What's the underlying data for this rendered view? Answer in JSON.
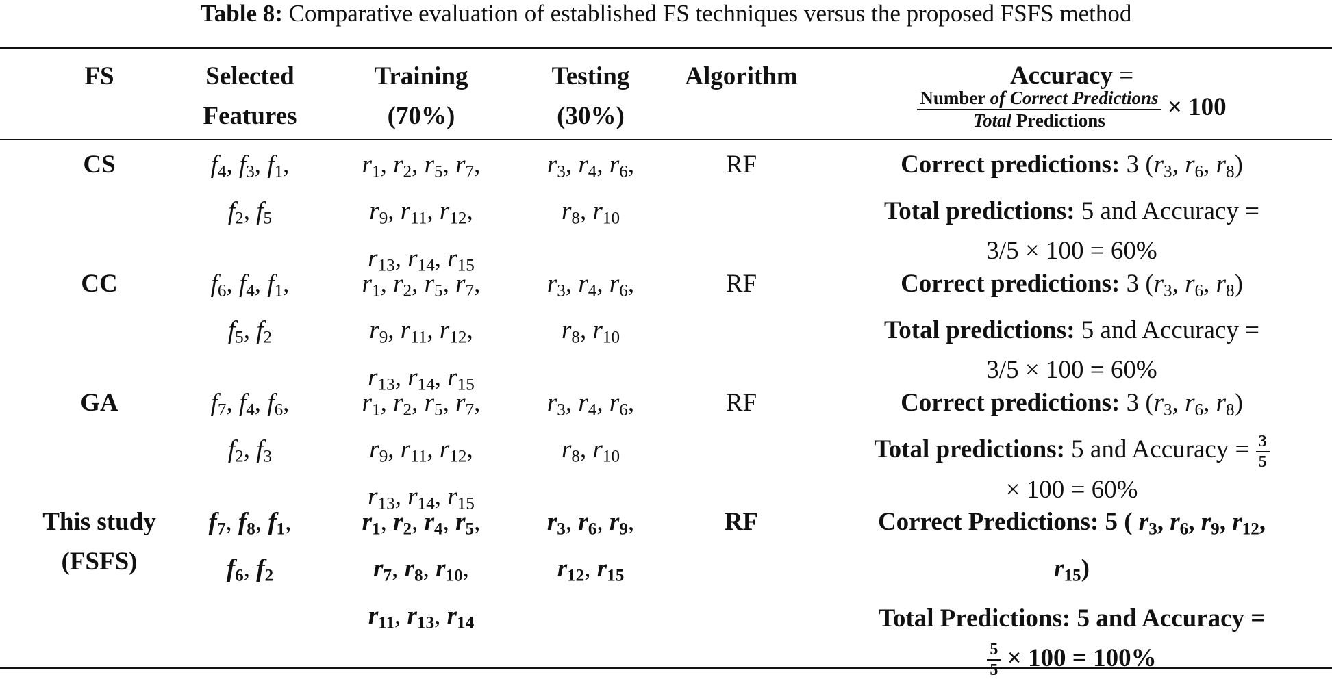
{
  "caption": {
    "label": "Table 8:",
    "text": " Comparative evaluation of established FS techniques versus the proposed FSFS method"
  },
  "header": {
    "fs": "FS",
    "selected_1": "Selected",
    "selected_2": "Features",
    "training_1": "Training",
    "training_2": "(70%)",
    "testing_1": "Testing",
    "testing_2": "(30%)",
    "algorithm": "Algorithm",
    "accuracy_label": "Accuracy",
    "accuracy_eq": " =",
    "frac_num_a": "Number",
    "frac_num_b": "of Correct Predictions",
    "frac_den_a": "Total",
    "frac_den_b": " Predictions",
    "times_100": "× 100"
  },
  "rows": [
    {
      "fs": "CS",
      "features_line1": [
        "4",
        "3",
        "1"
      ],
      "features_line2": [
        "2",
        "5"
      ],
      "training_line1": [
        "1",
        "2",
        "5",
        "7"
      ],
      "training_line2": [
        "9",
        "11",
        "12"
      ],
      "training_line3": [
        "13",
        "14",
        "15"
      ],
      "testing_line1": [
        "3",
        "4",
        "6"
      ],
      "testing_line2": [
        "8",
        "10"
      ],
      "algorithm": "RF",
      "acc_line1_label": "Correct predictions:",
      "acc_line1_value": " 3 (",
      "acc_line1_items": [
        "3",
        "6",
        "8"
      ],
      "acc_line2_label": "Total predictions:",
      "acc_line2_value": " 5 and Accuracy =",
      "acc_line3": "3/5 × 100 = 60%"
    },
    {
      "fs": "CC",
      "features_line1": [
        "6",
        "4",
        "1"
      ],
      "features_line2": [
        "5",
        "2"
      ],
      "training_line1": [
        "1",
        "2",
        "5",
        "7"
      ],
      "training_line2": [
        "9",
        "11",
        "12"
      ],
      "training_line3": [
        "13",
        "14",
        "15"
      ],
      "testing_line1": [
        "3",
        "4",
        "6"
      ],
      "testing_line2": [
        "8",
        "10"
      ],
      "algorithm": "RF",
      "acc_line1_label": "Correct predictions:",
      "acc_line1_value": " 3 (",
      "acc_line1_items": [
        "3",
        "6",
        "8"
      ],
      "acc_line2_label": "Total predictions:",
      "acc_line2_value": " 5 and Accuracy =",
      "acc_line3": "3/5 × 100 = 60%"
    },
    {
      "fs": "GA",
      "features_line1": [
        "7",
        "4",
        "6"
      ],
      "features_line2": [
        "2",
        "3"
      ],
      "training_line1": [
        "1",
        "2",
        "5",
        "7"
      ],
      "training_line2": [
        "9",
        "11",
        "12"
      ],
      "training_line3": [
        "13",
        "14",
        "15"
      ],
      "testing_line1": [
        "3",
        "4",
        "6"
      ],
      "testing_line2": [
        "8",
        "10"
      ],
      "algorithm": "RF",
      "acc_line1_label": "Correct predictions:",
      "acc_line1_value": " 3 (",
      "acc_line1_items": [
        "3",
        "6",
        "8"
      ],
      "acc_line2_label": "Total predictions:",
      "acc_line2_value": " 5 and Accuracy = ",
      "acc_line2_frac_num": "3",
      "acc_line2_frac_den": "5",
      "acc_line3": "× 100 = 60%"
    },
    {
      "fs_1": "This study",
      "fs_2": "(FSFS)",
      "features_line1": [
        "7",
        "8",
        "1"
      ],
      "features_line2": [
        "6",
        "2"
      ],
      "training_line1": [
        "1",
        "2",
        "4",
        "5"
      ],
      "training_line2": [
        "7",
        "8",
        "10"
      ],
      "training_line3": [
        "11",
        "13",
        "14"
      ],
      "testing_line1": [
        "3",
        "6",
        "9"
      ],
      "testing_line2": [
        "12",
        "15"
      ],
      "algorithm": "RF",
      "acc_line1_label": "Correct Predictions: 5 (",
      "acc_line1_items": [
        "3",
        "6",
        "9",
        "12"
      ],
      "acc_line1b_items": [
        "15"
      ],
      "acc_line2_label": "Total Predictions: 5 and Accuracy =",
      "acc_line3_frac_num": "5",
      "acc_line3_frac_den": "5",
      "acc_line3": "× 100 = 100%"
    }
  ]
}
